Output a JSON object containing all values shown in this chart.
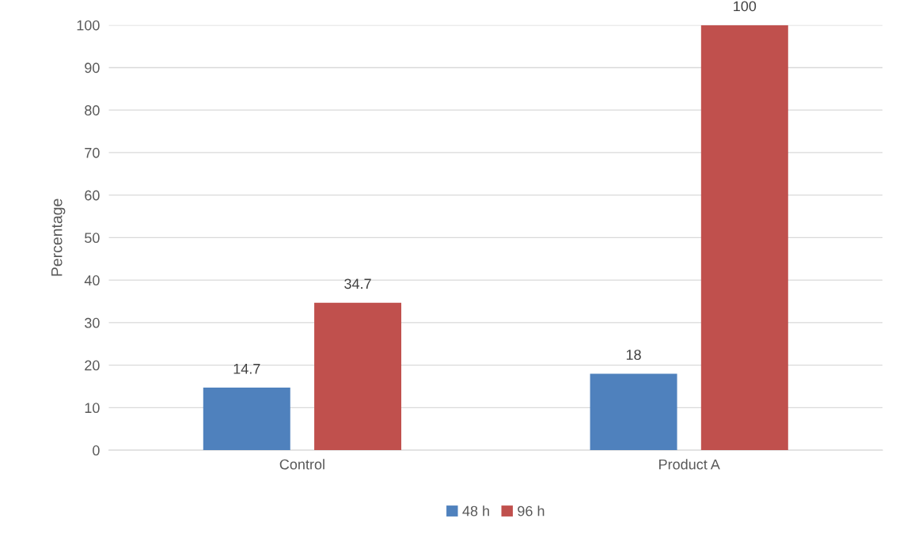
{
  "chart_data": {
    "type": "bar",
    "ylabel": "Percentage",
    "categories": [
      "Control",
      "Product A"
    ],
    "series": [
      {
        "name": "48 h",
        "color": "#4f81bd",
        "values": [
          14.7,
          18
        ]
      },
      {
        "name": "96 h",
        "color": "#c0504d",
        "values": [
          34.7,
          100
        ]
      }
    ],
    "ylim": [
      0,
      100
    ],
    "yticks": [
      0,
      10,
      20,
      30,
      40,
      50,
      60,
      70,
      80,
      90,
      100
    ],
    "grid": "y",
    "legend": "bottom",
    "data_labels": true
  }
}
